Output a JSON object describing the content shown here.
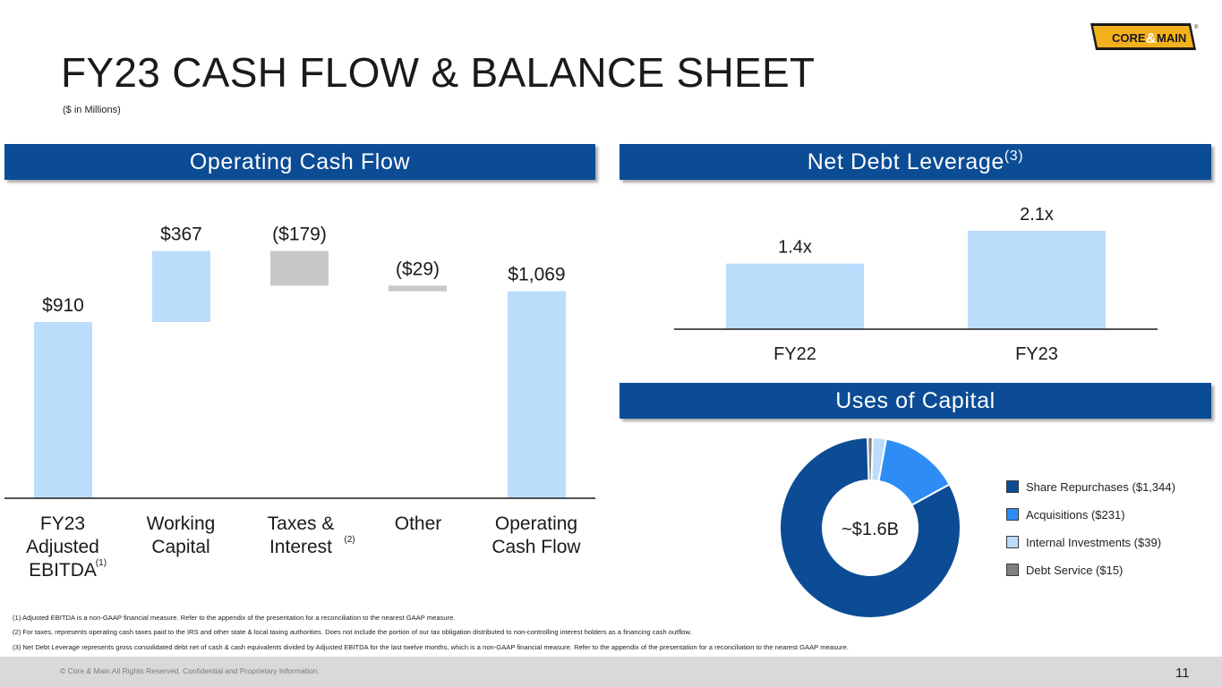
{
  "header": {
    "title": "FY23 CASH FLOW & BALANCE SHEET",
    "subtitle": "($ in Millions)",
    "logo_text_left": "CORE",
    "logo_text_amp": "&",
    "logo_text_right": "MAIN",
    "logo_mark": "®"
  },
  "banners": {
    "operating_cash_flow": "Operating Cash Flow",
    "net_debt_leverage": "Net Debt Leverage",
    "net_debt_leverage_note": "(3)",
    "uses_of_capital": "Uses of Capital"
  },
  "colors": {
    "banner_blue": "#0b4c95",
    "light_blue": "#bcdcfc",
    "gray_bar": "#c8c8c8",
    "dark_blue": "#0b4c95",
    "mid_blue": "#2e8df5",
    "pale_blue": "#bcdcfc",
    "dark_gray": "#808080"
  },
  "chart_data": [
    {
      "type": "bar",
      "subtype": "waterfall",
      "categories": [
        "FY23 Adjusted EBITDA",
        "Working Capital",
        "Taxes & Interest",
        "Other",
        "Operating Cash Flow"
      ],
      "category_lines": [
        [
          "FY23",
          "Adjusted",
          "EBITDA"
        ],
        [
          "Working",
          "Capital"
        ],
        [
          "Taxes &",
          "Interest"
        ],
        [
          "Other"
        ],
        [
          "Operating",
          "Cash Flow"
        ]
      ],
      "category_notes": [
        "(1)",
        "",
        "(2)",
        "",
        ""
      ],
      "values": [
        910,
        367,
        -179,
        -29,
        1069
      ],
      "bar_kind": [
        "total",
        "delta",
        "delta",
        "delta",
        "total"
      ],
      "data_labels": [
        "$910",
        "$367",
        "($179)",
        "($29)",
        "$1,069"
      ],
      "ylim": [
        0,
        1100
      ]
    },
    {
      "type": "bar",
      "categories": [
        "FY22",
        "FY23"
      ],
      "values": [
        1.4,
        2.1
      ],
      "data_labels": [
        "1.4x",
        "2.1x"
      ],
      "ylim": [
        0,
        2.5
      ]
    },
    {
      "type": "pie",
      "subtype": "donut",
      "center_label": "~$1.6B",
      "slices": [
        {
          "label": "Share Repurchases ($1,344)",
          "value": 1344,
          "color": "#0b4c95"
        },
        {
          "label": "Acquisitions ($231)",
          "value": 231,
          "color": "#2e8df5"
        },
        {
          "label": "Internal Investments ($39)",
          "value": 39,
          "color": "#bcdcfc"
        },
        {
          "label": "Debt Service ($15)",
          "value": 15,
          "color": "#808080"
        }
      ],
      "legend_placement": "right"
    }
  ],
  "footnotes": [
    "(1) Adjusted EBITDA is a non-GAAP financial measure. Refer to the appendix of the presentation for a reconciliation to the nearest GAAP measure.",
    "(2) For taxes, represents operating cash taxes paid to the IRS and other state & local taxing authorities. Does not include the portion of our tax obligation distributed to non-controlling interest holders as a financing cash outflow.",
    "(3) Net Debt Leverage represents gross consolidated debt net of cash & cash equivalents divided by Adjusted EBITDA for the last twelve months, which is a non-GAAP financial measure. Refer to the appendix of the presentation for a reconciliation to the nearest GAAP measure."
  ],
  "footer": {
    "copyright": "© Core & Main  All Rights Reserved. Confidential and Proprietary Information.",
    "page_number": "11"
  }
}
